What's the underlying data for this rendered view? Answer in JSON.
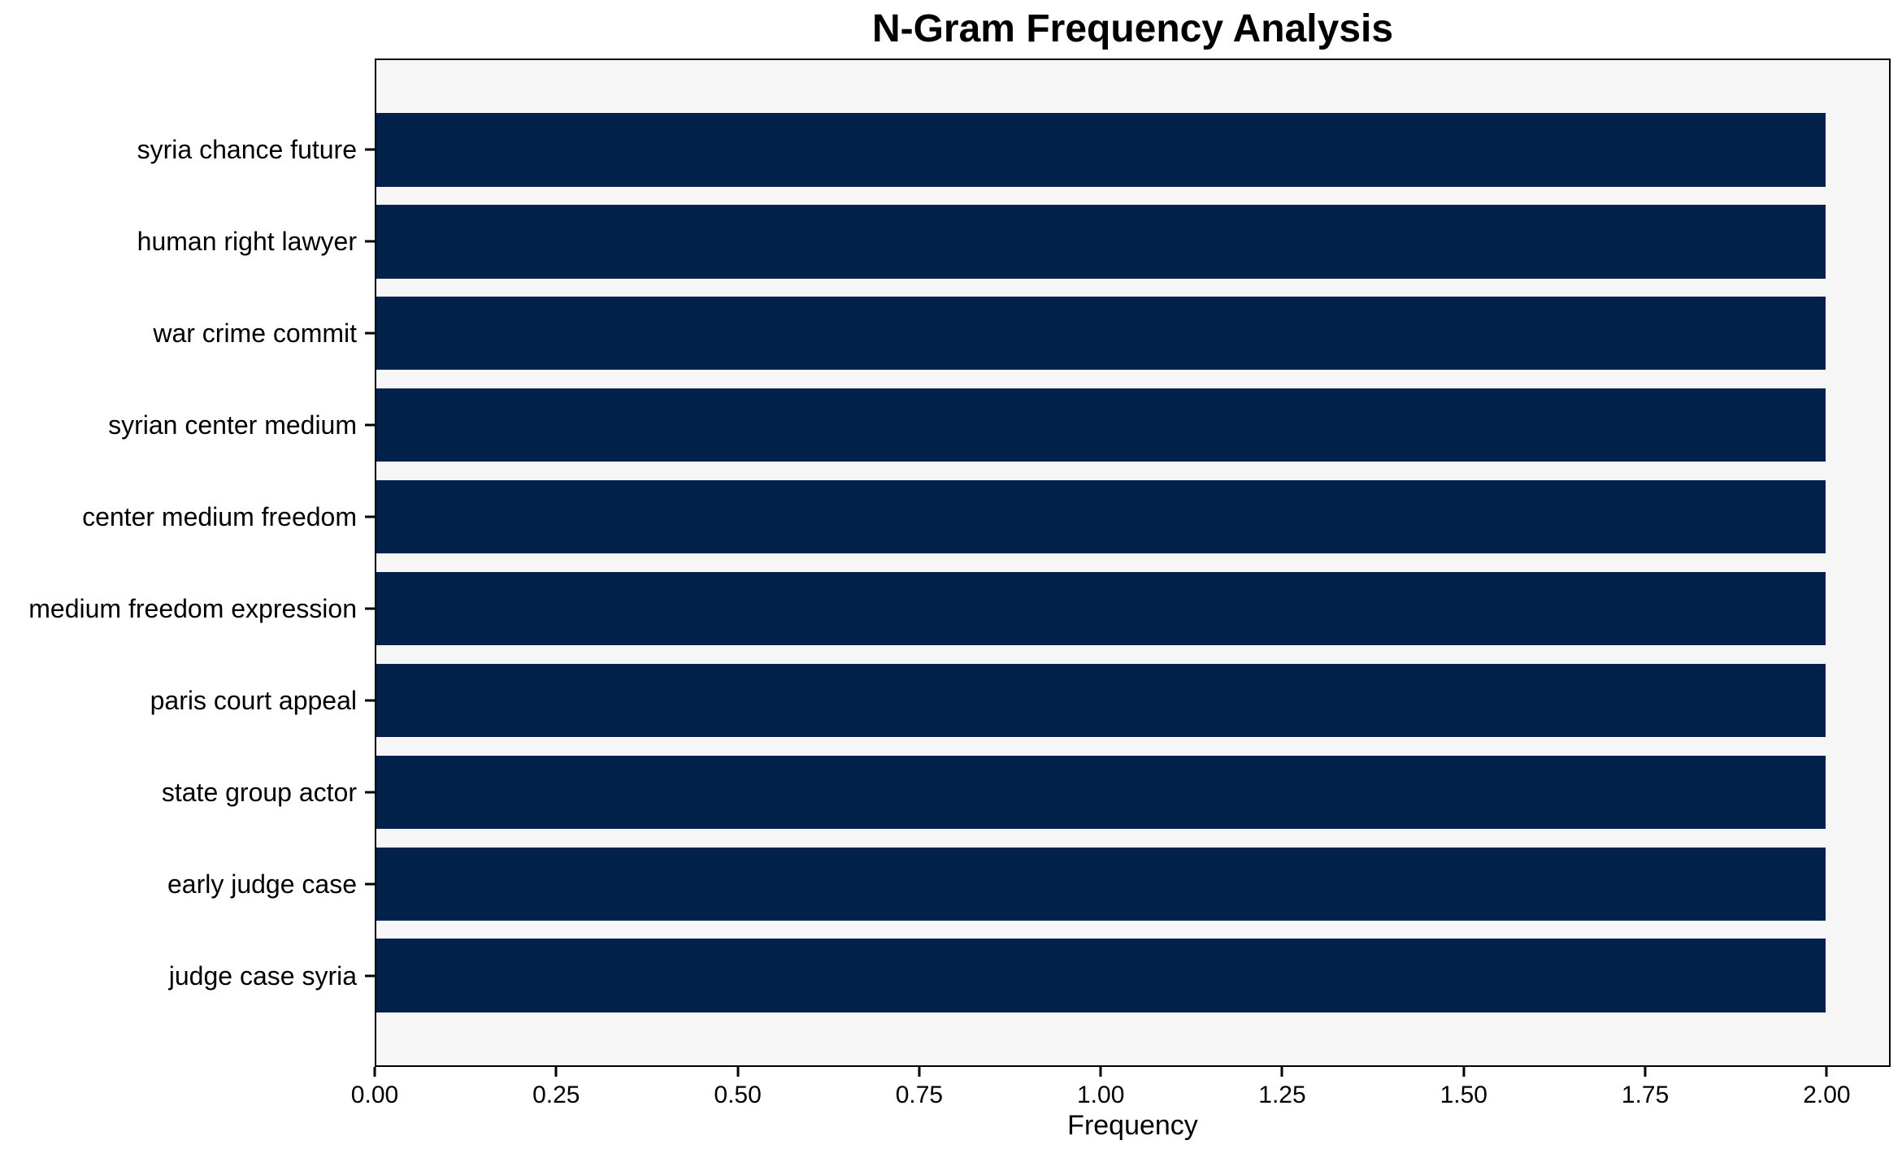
{
  "chart_data": {
    "type": "bar",
    "orientation": "horizontal",
    "title": "N-Gram Frequency Analysis",
    "xlabel": "Frequency",
    "ylabel": "",
    "categories": [
      "syria chance future",
      "human right lawyer",
      "war crime commit",
      "syrian center medium",
      "center medium freedom",
      "medium freedom expression",
      "paris court appeal",
      "state group actor",
      "early judge case",
      "judge case syria"
    ],
    "values": [
      2,
      2,
      2,
      2,
      2,
      2,
      2,
      2,
      2,
      2
    ],
    "xlim": [
      0,
      2.088
    ],
    "xticks": [
      {
        "value": 0.0,
        "label": "0.00"
      },
      {
        "value": 0.25,
        "label": "0.25"
      },
      {
        "value": 0.5,
        "label": "0.50"
      },
      {
        "value": 0.75,
        "label": "0.75"
      },
      {
        "value": 1.0,
        "label": "1.00"
      },
      {
        "value": 1.25,
        "label": "1.25"
      },
      {
        "value": 1.5,
        "label": "1.50"
      },
      {
        "value": 1.75,
        "label": "1.75"
      },
      {
        "value": 2.0,
        "label": "2.00"
      }
    ],
    "grid": false,
    "legend": "none",
    "colors": {
      "bar": "#03224B",
      "plot_background": "#f6f6f6",
      "figure_background": "#ffffff",
      "spine": "#000000",
      "text": "#000000"
    }
  }
}
